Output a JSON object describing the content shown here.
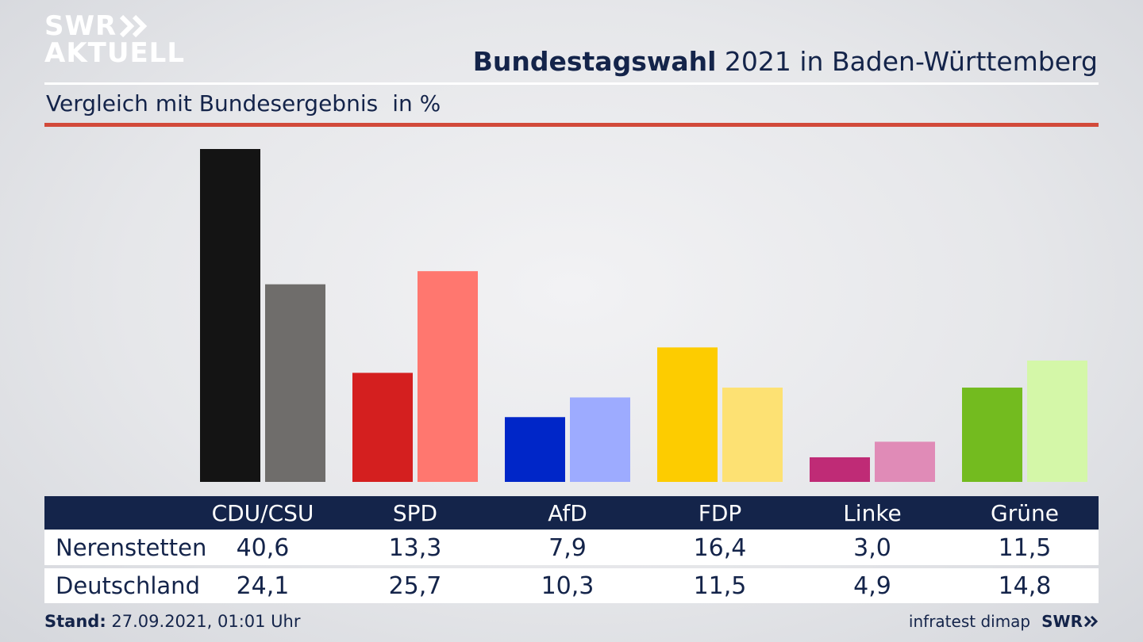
{
  "logo": {
    "line1": "SWR",
    "line2": "AKTUELL"
  },
  "header": {
    "title_bold": "Bundestagswahl",
    "title_rest": " 2021 in Baden-Württemberg"
  },
  "subtitle": {
    "text": "Vergleich mit Bundesergebnis",
    "unit": "in %"
  },
  "colors": {
    "navy": "#14244a",
    "accent_rule": "#d24a3a"
  },
  "chart_data": {
    "type": "bar",
    "categories": [
      "CDU/CSU",
      "SPD",
      "AfD",
      "FDP",
      "Linke",
      "Grüne"
    ],
    "series": [
      {
        "name": "Nerenstetten",
        "values": [
          40.6,
          13.3,
          7.9,
          16.4,
          3.0,
          11.5
        ],
        "colors": [
          "#141414",
          "#d41f1f",
          "#0026c8",
          "#fdcc00",
          "#bf2b76",
          "#73bb1f"
        ]
      },
      {
        "name": "Deutschland",
        "values": [
          24.1,
          25.7,
          10.3,
          11.5,
          4.9,
          14.8
        ],
        "colors": [
          "#6f6d6b",
          "#ff776f",
          "#9dabff",
          "#fde173",
          "#e08bb7",
          "#d4f7a8"
        ]
      }
    ],
    "ylim": [
      0,
      40.6
    ],
    "grid": false
  },
  "table": {
    "headers": [
      "CDU/CSU",
      "SPD",
      "AfD",
      "FDP",
      "Linke",
      "Grüne"
    ],
    "rows": [
      {
        "label": "Nerenstetten",
        "values": [
          "40,6",
          "13,3",
          "7,9",
          "16,4",
          "3,0",
          "11,5"
        ]
      },
      {
        "label": "Deutschland",
        "values": [
          "24,1",
          "25,7",
          "10,3",
          "11,5",
          "4,9",
          "14,8"
        ]
      }
    ]
  },
  "footer": {
    "stand_label": "Stand:",
    "stand_value": " 27.09.2021, 01:01 Uhr",
    "source": "infratest dimap",
    "brand": "SWR"
  }
}
